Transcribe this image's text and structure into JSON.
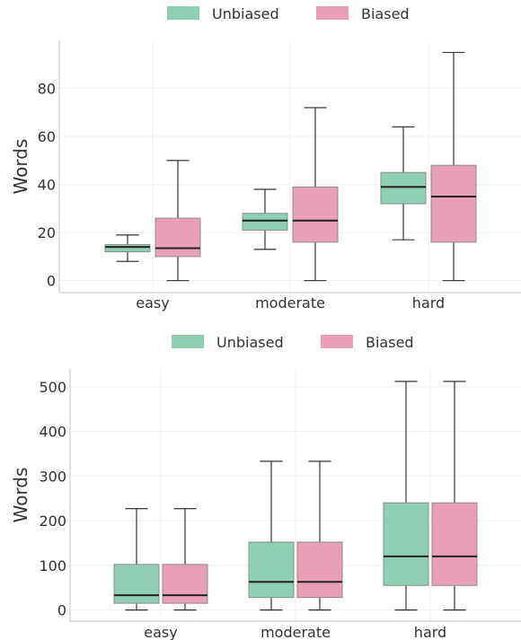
{
  "colors": {
    "unbiased": "#8fcfb4",
    "biased": "#e9a0b7",
    "whisker": "#222222",
    "median": "#222222",
    "box_edge": "#8c8c8c",
    "grid": "#f0f0f0",
    "axis": "#d0d0d0"
  },
  "chart_data": [
    {
      "type": "box",
      "ylabel": "Words",
      "xlabel": "",
      "categories": [
        "easy",
        "moderate",
        "hard"
      ],
      "ylim": [
        -5,
        100
      ],
      "yticks": [
        0,
        20,
        40,
        60,
        80
      ],
      "legend_position": "top-center",
      "grid": true,
      "series": [
        {
          "name": "Unbiased",
          "boxes": [
            {
              "min": 8,
              "q1": 12,
              "median": 14,
              "q3": 15,
              "max": 19
            },
            {
              "min": 13,
              "q1": 21,
              "median": 25,
              "q3": 28,
              "max": 38
            },
            {
              "min": 17,
              "q1": 32,
              "median": 39,
              "q3": 45,
              "max": 64
            }
          ]
        },
        {
          "name": "Biased",
          "boxes": [
            {
              "min": 0,
              "q1": 10,
              "median": 13.5,
              "q3": 26,
              "max": 50
            },
            {
              "min": 0,
              "q1": 16,
              "median": 25,
              "q3": 39,
              "max": 72
            },
            {
              "min": 0,
              "q1": 16,
              "median": 35,
              "q3": 48,
              "max": 95
            }
          ]
        }
      ]
    },
    {
      "type": "box",
      "ylabel": "Words",
      "xlabel": "",
      "categories": [
        "easy",
        "moderate",
        "hard"
      ],
      "ylim": [
        -25,
        540
      ],
      "yticks": [
        0,
        100,
        200,
        300,
        400,
        500
      ],
      "legend_position": "top-center",
      "grid": true,
      "series": [
        {
          "name": "Unbiased",
          "boxes": [
            {
              "min": 0,
              "q1": 15,
              "median": 33,
              "q3": 102,
              "max": 227
            },
            {
              "min": 0,
              "q1": 28,
              "median": 63,
              "q3": 152,
              "max": 333
            },
            {
              "min": 0,
              "q1": 55,
              "median": 120,
              "q3": 240,
              "max": 512
            }
          ]
        },
        {
          "name": "Biased",
          "boxes": [
            {
              "min": 0,
              "q1": 15,
              "median": 33,
              "q3": 102,
              "max": 227
            },
            {
              "min": 0,
              "q1": 28,
              "median": 63,
              "q3": 152,
              "max": 333
            },
            {
              "min": 0,
              "q1": 55,
              "median": 120,
              "q3": 240,
              "max": 512
            }
          ]
        }
      ]
    }
  ]
}
